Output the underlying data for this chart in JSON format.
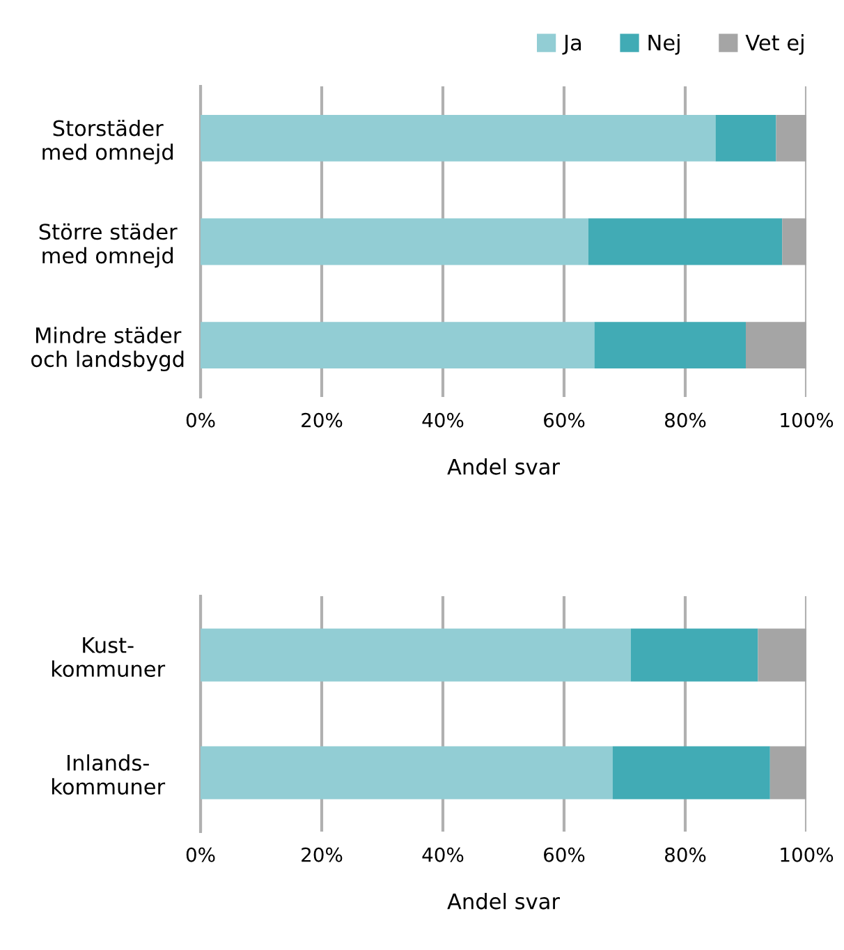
{
  "chart_data": [
    {
      "type": "bar",
      "orientation": "horizontal",
      "stacked": true,
      "categories": [
        "Storstäder\nmed omnejd",
        "Större städer\nmed omnejd",
        "Mindre städer\noch landsbygd"
      ],
      "series": [
        {
          "name": "Ja",
          "color": "#92cdd4",
          "values": [
            85,
            64,
            65
          ]
        },
        {
          "name": "Nej",
          "color": "#41abb5",
          "values": [
            10,
            32,
            25
          ]
        },
        {
          "name": "Vet ej",
          "color": "#a5a5a5",
          "values": [
            5,
            4,
            10
          ]
        }
      ],
      "xlim": [
        0,
        100
      ],
      "xticks": [
        {
          "value": 0,
          "label": "0%"
        },
        {
          "value": 20,
          "label": "20%"
        },
        {
          "value": 40,
          "label": "40%"
        },
        {
          "value": 60,
          "label": "60%"
        },
        {
          "value": 80,
          "label": "80%"
        },
        {
          "value": 100,
          "label": "100%"
        }
      ],
      "xlabel": "Andel svar",
      "grid": "x",
      "legend": "top right"
    },
    {
      "type": "bar",
      "orientation": "horizontal",
      "stacked": true,
      "categories": [
        "Kust-\nkommuner",
        "Inlands-\nkommuner"
      ],
      "series": [
        {
          "color": "#92cdd4",
          "values": [
            71,
            68
          ]
        },
        {
          "color": "#41abb5",
          "values": [
            21,
            26
          ]
        },
        {
          "color": "#a5a5a5",
          "values": [
            8,
            6
          ]
        }
      ],
      "xlim": [
        0,
        100
      ],
      "xticks": [
        {
          "value": 0,
          "label": "0%"
        },
        {
          "value": 20,
          "label": "20%"
        },
        {
          "value": 40,
          "label": "40%"
        },
        {
          "value": 60,
          "label": "60%"
        },
        {
          "value": 80,
          "label": "80%"
        },
        {
          "value": 100,
          "label": "100%"
        }
      ],
      "xlabel": "Andel svar",
      "grid": "x"
    }
  ]
}
